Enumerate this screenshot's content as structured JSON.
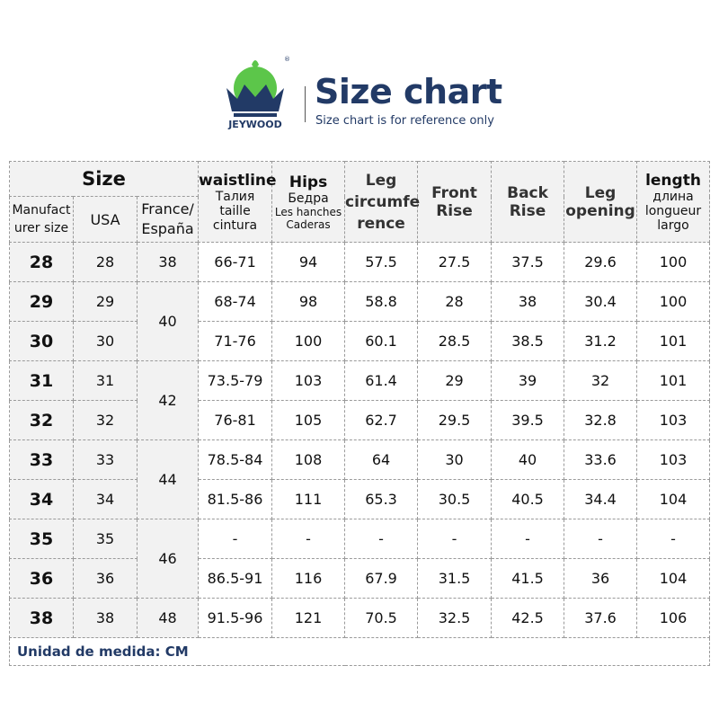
{
  "brand": {
    "name": "JEYWOOD",
    "registered": "®"
  },
  "header": {
    "title": "Size chart",
    "subtitle": "Size chart is for reference only"
  },
  "columns": {
    "size": "Size",
    "manufacturer": "Manufact urer size",
    "usa": "USA",
    "france": "France/ España",
    "waist": {
      "title": "waistline",
      "l1": "Талия",
      "l2": "taille",
      "l3": "cintura"
    },
    "hips": {
      "title": "Hips",
      "l1": "Бедра",
      "l2": "Les hanches",
      "l3": "Caderas"
    },
    "leg_circ": "Leg circumfe rence",
    "front_rise": "Front Rise",
    "back_rise": "Back Rise",
    "leg_opening": "Leg opening",
    "length": {
      "title": "length",
      "l1": "длина",
      "l2": "longueur",
      "l3": "largo"
    }
  },
  "rows": [
    {
      "m": "28",
      "usa": "28",
      "fr": "38",
      "waist": "66-71",
      "hips": "94",
      "leg": "57.5",
      "front": "27.5",
      "back": "37.5",
      "open": "29.6",
      "len": "100"
    },
    {
      "m": "29",
      "usa": "29",
      "fr": "40",
      "waist": "68-74",
      "hips": "98",
      "leg": "58.8",
      "front": "28",
      "back": "38",
      "open": "30.4",
      "len": "100"
    },
    {
      "m": "30",
      "usa": "30",
      "fr": "",
      "waist": "71-76",
      "hips": "100",
      "leg": "60.1",
      "front": "28.5",
      "back": "38.5",
      "open": "31.2",
      "len": "101"
    },
    {
      "m": "31",
      "usa": "31",
      "fr": "42",
      "waist": "73.5-79",
      "hips": "103",
      "leg": "61.4",
      "front": "29",
      "back": "39",
      "open": "32",
      "len": "101"
    },
    {
      "m": "32",
      "usa": "32",
      "fr": "",
      "waist": "76-81",
      "hips": "105",
      "leg": "62.7",
      "front": "29.5",
      "back": "39.5",
      "open": "32.8",
      "len": "103"
    },
    {
      "m": "33",
      "usa": "33",
      "fr": "44",
      "waist": "78.5-84",
      "hips": "108",
      "leg": "64",
      "front": "30",
      "back": "40",
      "open": "33.6",
      "len": "103"
    },
    {
      "m": "34",
      "usa": "34",
      "fr": "",
      "waist": "81.5-86",
      "hips": "111",
      "leg": "65.3",
      "front": "30.5",
      "back": "40.5",
      "open": "34.4",
      "len": "104"
    },
    {
      "m": "35",
      "usa": "35",
      "fr": "46",
      "waist": "-",
      "hips": "-",
      "leg": "-",
      "front": "-",
      "back": "-",
      "open": "-",
      "len": "-"
    },
    {
      "m": "36",
      "usa": "36",
      "fr": "",
      "waist": "86.5-91",
      "hips": "116",
      "leg": "67.9",
      "front": "31.5",
      "back": "41.5",
      "open": "36",
      "len": "104"
    },
    {
      "m": "38",
      "usa": "38",
      "fr": "48",
      "waist": "91.5-96",
      "hips": "121",
      "leg": "70.5",
      "front": "32.5",
      "back": "42.5",
      "open": "37.6",
      "len": "106"
    }
  ],
  "footer": "Unidad de medida: CM",
  "colors": {
    "navy": "#223a66",
    "green": "#5cc64a",
    "header_gray": "#f2f2f2"
  }
}
